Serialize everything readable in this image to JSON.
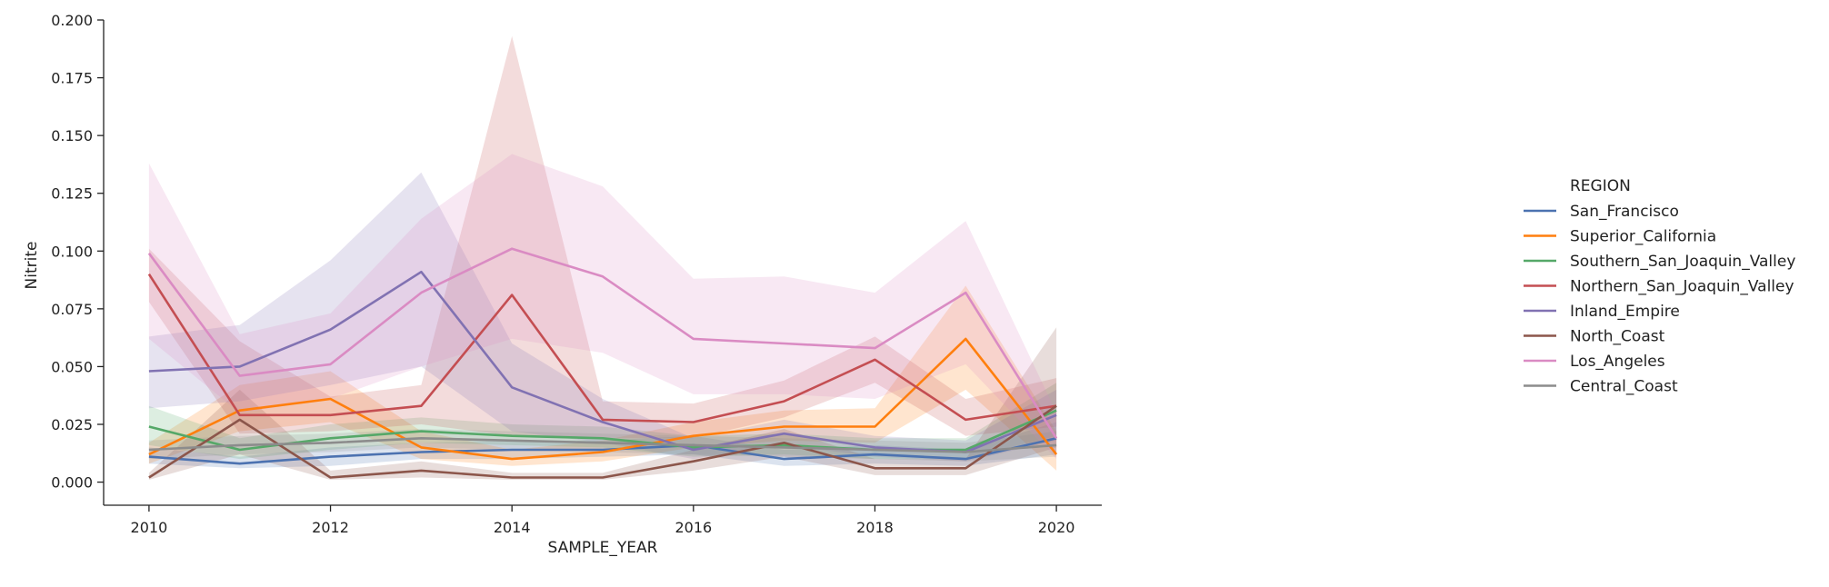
{
  "chart_data": {
    "type": "line",
    "xlabel": "SAMPLE_YEAR",
    "ylabel": "Nitrite",
    "xlim": [
      2009.5,
      2020.5
    ],
    "ylim": [
      -0.01,
      0.2
    ],
    "xticks": [
      2010,
      2012,
      2014,
      2016,
      2018,
      2020
    ],
    "yticks": [
      "0.000",
      "0.025",
      "0.050",
      "0.075",
      "0.100",
      "0.125",
      "0.150",
      "0.175",
      "0.200"
    ],
    "grid": false,
    "legend_title": "REGION",
    "legend_placement": "right",
    "x": [
      2010,
      2011,
      2012,
      2013,
      2014,
      2015,
      2016,
      2017,
      2018,
      2019,
      2020
    ],
    "series": [
      {
        "name": "San_Francisco",
        "color": "#4c72b0",
        "values": [
          0.011,
          0.008,
          0.011,
          0.013,
          0.014,
          0.014,
          0.016,
          0.01,
          0.012,
          0.01,
          0.019
        ],
        "lower": [
          0.008,
          0.006,
          0.007,
          0.01,
          0.01,
          0.011,
          0.012,
          0.007,
          0.008,
          0.007,
          0.012
        ],
        "upper": [
          0.015,
          0.011,
          0.015,
          0.017,
          0.018,
          0.018,
          0.02,
          0.014,
          0.016,
          0.014,
          0.026
        ]
      },
      {
        "name": "Superior_California",
        "color": "#ff7f0e",
        "values": [
          0.012,
          0.031,
          0.036,
          0.015,
          0.01,
          0.013,
          0.02,
          0.024,
          0.024,
          0.062,
          0.012
        ],
        "lower": [
          0.008,
          0.022,
          0.026,
          0.01,
          0.007,
          0.009,
          0.015,
          0.018,
          0.017,
          0.04,
          0.005
        ],
        "upper": [
          0.017,
          0.042,
          0.048,
          0.022,
          0.014,
          0.018,
          0.026,
          0.031,
          0.032,
          0.085,
          0.022
        ]
      },
      {
        "name": "Southern_San_Joaquin_Valley",
        "color": "#55a868",
        "values": [
          0.024,
          0.014,
          0.019,
          0.022,
          0.02,
          0.019,
          0.015,
          0.016,
          0.014,
          0.014,
          0.031
        ],
        "lower": [
          0.016,
          0.01,
          0.014,
          0.017,
          0.016,
          0.015,
          0.011,
          0.012,
          0.01,
          0.01,
          0.02
        ],
        "upper": [
          0.033,
          0.019,
          0.025,
          0.028,
          0.025,
          0.024,
          0.02,
          0.021,
          0.019,
          0.019,
          0.043
        ]
      },
      {
        "name": "Northern_San_Joaquin_Valley",
        "color": "#c44e52",
        "values": [
          0.09,
          0.029,
          0.029,
          0.033,
          0.081,
          0.027,
          0.026,
          0.035,
          0.053,
          0.027,
          0.033
        ],
        "lower": [
          0.078,
          0.021,
          0.022,
          0.025,
          0.02,
          0.019,
          0.019,
          0.028,
          0.043,
          0.02,
          0.024
        ],
        "upper": [
          0.101,
          0.061,
          0.037,
          0.042,
          0.193,
          0.035,
          0.034,
          0.044,
          0.063,
          0.036,
          0.045
        ]
      },
      {
        "name": "Inland_Empire",
        "color": "#8172b2",
        "values": [
          0.048,
          0.05,
          0.066,
          0.091,
          0.041,
          0.026,
          0.014,
          0.021,
          0.015,
          0.013,
          0.029
        ],
        "lower": [
          0.032,
          0.035,
          0.042,
          0.05,
          0.022,
          0.017,
          0.01,
          0.016,
          0.011,
          0.009,
          0.018
        ],
        "upper": [
          0.063,
          0.068,
          0.096,
          0.134,
          0.06,
          0.036,
          0.019,
          0.027,
          0.02,
          0.018,
          0.04
        ]
      },
      {
        "name": "North_Coast",
        "color": "#8c564b",
        "values": [
          0.002,
          0.027,
          0.002,
          0.005,
          0.002,
          0.002,
          0.009,
          0.017,
          0.006,
          0.006,
          0.033
        ],
        "lower": [
          0.001,
          0.012,
          0.001,
          0.002,
          0.001,
          0.001,
          0.005,
          0.011,
          0.003,
          0.003,
          0.015
        ],
        "upper": [
          0.004,
          0.04,
          0.005,
          0.009,
          0.004,
          0.004,
          0.014,
          0.023,
          0.01,
          0.01,
          0.067
        ]
      },
      {
        "name": "Los_Angeles",
        "color": "#da8bc3",
        "values": [
          0.099,
          0.046,
          0.051,
          0.082,
          0.101,
          0.089,
          0.062,
          0.06,
          0.058,
          0.082,
          0.019
        ],
        "lower": [
          0.062,
          0.03,
          0.036,
          0.05,
          0.062,
          0.056,
          0.038,
          0.038,
          0.036,
          0.051,
          0.01
        ],
        "upper": [
          0.138,
          0.064,
          0.073,
          0.114,
          0.142,
          0.128,
          0.088,
          0.089,
          0.082,
          0.113,
          0.03
        ]
      },
      {
        "name": "Central_Coast",
        "color": "#8c8c8c",
        "values": [
          0.014,
          0.016,
          0.017,
          0.019,
          0.018,
          0.017,
          0.016,
          0.015,
          0.014,
          0.013,
          0.016
        ],
        "lower": [
          0.01,
          0.012,
          0.013,
          0.015,
          0.014,
          0.013,
          0.012,
          0.011,
          0.01,
          0.009,
          0.011
        ],
        "upper": [
          0.018,
          0.02,
          0.021,
          0.023,
          0.022,
          0.021,
          0.02,
          0.019,
          0.018,
          0.017,
          0.022
        ]
      }
    ]
  }
}
